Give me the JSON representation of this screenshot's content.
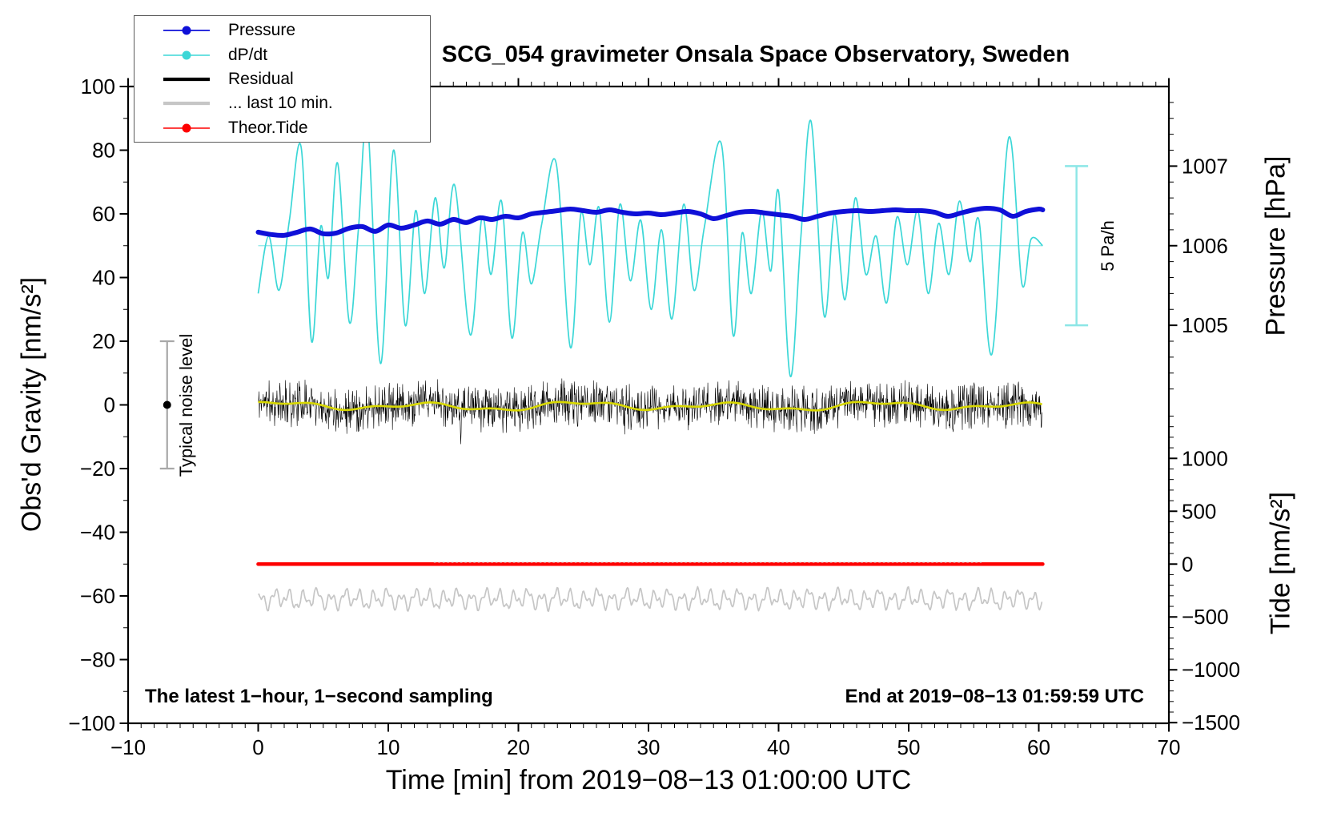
{
  "chart_data": {
    "type": "line",
    "title": "SCG_054 gravimeter Onsala Space Observatory, Sweden",
    "xlabel": "Time [min] from 2019−08−13 01:00:00 UTC",
    "ylabel_left": "Obs'd Gravity [nm/s²]",
    "ylabel_right_pressure": "Pressure [hPa]",
    "ylabel_right_tide": "Tide [nm/s²]",
    "annotation_bottom_left": "The latest 1−hour, 1−second sampling",
    "annotation_bottom_right": "End at 2019−08−13 01:59:59 UTC",
    "legend_position": "top-left",
    "grid": false,
    "legend": {
      "items": [
        {
          "label": "Pressure",
          "color": "#0f10d8",
          "line_width": 1.8,
          "dot": true
        },
        {
          "label": "dP/dt",
          "color": "#3cd7d7",
          "line_width": 1.6,
          "dot": true
        },
        {
          "label": "Residual",
          "color": "#000000",
          "line_width": 4.2,
          "dot": false
        },
        {
          "label": "... last 10 min.",
          "color": "#c6c6c6",
          "line_width": 4.2,
          "dot": false
        },
        {
          "label": "Theor.Tide",
          "color": "#fe0000",
          "line_width": 1.6,
          "dot": true
        }
      ]
    },
    "axes": {
      "x": {
        "min": -10,
        "max": 70,
        "major": 10,
        "minor": 1,
        "ticks": [
          -10,
          0,
          10,
          20,
          30,
          40,
          50,
          60,
          70
        ]
      },
      "y_left": {
        "min": -100,
        "max": 100,
        "major": 20,
        "minor": 10,
        "ticks": [
          100,
          80,
          60,
          40,
          20,
          0,
          -20,
          -40,
          -60,
          -80,
          -100
        ]
      },
      "y_right_pressure": {
        "ticks": [
          1007,
          1006,
          1005
        ],
        "minor_step": 0.2,
        "ref_value": 1006,
        "ref_gravity": 50,
        "gravity_per_unit": 25
      },
      "y_right_tide": {
        "ticks": [
          1000,
          500,
          0,
          -500,
          -1000,
          -1500
        ],
        "minor_step": 100,
        "zero_gravity": -50,
        "gravity_per_unit": 0.0332
      }
    },
    "dpdt_scale": {
      "zero_gravity": 50,
      "gravity_per_unit": 10
    },
    "noise_bar": {
      "label": "Typical noise level",
      "x_min": -7,
      "from_gravity": -20,
      "to_gravity": 20,
      "dot_gravity": 0
    },
    "scale_bar": {
      "label": "5 Pa/h",
      "x_min": 62.9,
      "from_gravity": 25,
      "to_gravity": 75
    },
    "series": [
      {
        "name": "pressure",
        "axis": "pressure",
        "unit": "hPa",
        "color": "#0f10d8",
        "width": 6,
        "points": [
          [
            0,
            1006.17
          ],
          [
            1,
            1006.14
          ],
          [
            2,
            1006.13
          ],
          [
            3,
            1006.17
          ],
          [
            4,
            1006.21
          ],
          [
            5,
            1006.15
          ],
          [
            6,
            1006.16
          ],
          [
            7,
            1006.22
          ],
          [
            8,
            1006.24
          ],
          [
            9,
            1006.18
          ],
          [
            10,
            1006.26
          ],
          [
            11,
            1006.22
          ],
          [
            12,
            1006.26
          ],
          [
            13,
            1006.31
          ],
          [
            14,
            1006.27
          ],
          [
            15,
            1006.33
          ],
          [
            16,
            1006.29
          ],
          [
            17,
            1006.35
          ],
          [
            18,
            1006.33
          ],
          [
            19,
            1006.37
          ],
          [
            20,
            1006.35
          ],
          [
            21,
            1006.4
          ],
          [
            22,
            1006.42
          ],
          [
            23,
            1006.44
          ],
          [
            24,
            1006.46
          ],
          [
            25,
            1006.44
          ],
          [
            26,
            1006.42
          ],
          [
            27,
            1006.45
          ],
          [
            28,
            1006.42
          ],
          [
            29,
            1006.4
          ],
          [
            30,
            1006.41
          ],
          [
            31,
            1006.39
          ],
          [
            32,
            1006.41
          ],
          [
            33,
            1006.43
          ],
          [
            34,
            1006.4
          ],
          [
            35,
            1006.34
          ],
          [
            36,
            1006.38
          ],
          [
            37,
            1006.42
          ],
          [
            38,
            1006.43
          ],
          [
            39,
            1006.41
          ],
          [
            40,
            1006.39
          ],
          [
            41,
            1006.37
          ],
          [
            42,
            1006.33
          ],
          [
            43,
            1006.37
          ],
          [
            44,
            1006.41
          ],
          [
            45,
            1006.43
          ],
          [
            46,
            1006.44
          ],
          [
            47,
            1006.43
          ],
          [
            48,
            1006.44
          ],
          [
            49,
            1006.45
          ],
          [
            50,
            1006.44
          ],
          [
            51,
            1006.44
          ],
          [
            52,
            1006.42
          ],
          [
            53,
            1006.37
          ],
          [
            54,
            1006.41
          ],
          [
            55,
            1006.45
          ],
          [
            56,
            1006.47
          ],
          [
            57,
            1006.45
          ],
          [
            58,
            1006.37
          ],
          [
            59,
            1006.43
          ],
          [
            60,
            1006.46
          ],
          [
            60.3,
            1006.45
          ]
        ]
      },
      {
        "name": "dpdt",
        "axis": "dpdt",
        "unit": "Pa/h",
        "color": "#3cd7d7",
        "width": 1.7,
        "zero_line_color": "#8ce6e6",
        "points": [
          [
            0,
            -1.5
          ],
          [
            0.8,
            0.3
          ],
          [
            1.6,
            -1.4
          ],
          [
            2.4,
            0.8
          ],
          [
            3.3,
            3.1
          ],
          [
            4.1,
            -3.0
          ],
          [
            4.8,
            0.6
          ],
          [
            5.4,
            -1.0
          ],
          [
            6.1,
            2.6
          ],
          [
            7.0,
            -2.4
          ],
          [
            7.7,
            0.5
          ],
          [
            8.4,
            3.9
          ],
          [
            9.4,
            -3.7
          ],
          [
            10.4,
            3.0
          ],
          [
            11.3,
            -2.5
          ],
          [
            12.1,
            1.1
          ],
          [
            12.8,
            -1.5
          ],
          [
            13.6,
            1.5
          ],
          [
            14.3,
            -0.7
          ],
          [
            15.1,
            1.9
          ],
          [
            16.3,
            -2.8
          ],
          [
            17.2,
            0.9
          ],
          [
            17.9,
            -0.9
          ],
          [
            18.7,
            1.4
          ],
          [
            19.5,
            -2.9
          ],
          [
            20.3,
            0.4
          ],
          [
            21.0,
            -1.2
          ],
          [
            21.8,
            0.7
          ],
          [
            22.9,
            2.6
          ],
          [
            24.0,
            -3.2
          ],
          [
            24.8,
            1.0
          ],
          [
            25.5,
            -0.6
          ],
          [
            26.2,
            1.2
          ],
          [
            27.0,
            -2.4
          ],
          [
            27.8,
            1.3
          ],
          [
            28.6,
            -1.1
          ],
          [
            29.4,
            0.8
          ],
          [
            30.2,
            -2.0
          ],
          [
            31.0,
            0.5
          ],
          [
            31.8,
            -2.3
          ],
          [
            32.7,
            1.3
          ],
          [
            33.5,
            -1.4
          ],
          [
            34.3,
            0.6
          ],
          [
            35.6,
            3.2
          ],
          [
            36.5,
            -2.8
          ],
          [
            37.2,
            0.4
          ],
          [
            37.9,
            -1.5
          ],
          [
            38.7,
            1.1
          ],
          [
            39.4,
            -0.8
          ],
          [
            40.0,
            1.7
          ],
          [
            40.9,
            -4.1
          ],
          [
            41.7,
            0.2
          ],
          [
            42.5,
            3.9
          ],
          [
            43.5,
            -2.2
          ],
          [
            44.3,
            1.0
          ],
          [
            45.1,
            -1.7
          ],
          [
            45.9,
            1.5
          ],
          [
            46.7,
            -0.9
          ],
          [
            47.5,
            0.3
          ],
          [
            48.3,
            -1.8
          ],
          [
            49.1,
            0.9
          ],
          [
            49.9,
            -0.6
          ],
          [
            50.7,
            1.1
          ],
          [
            51.5,
            -1.5
          ],
          [
            52.3,
            0.7
          ],
          [
            53.1,
            -0.9
          ],
          [
            53.9,
            1.4
          ],
          [
            54.7,
            -0.5
          ],
          [
            55.4,
            0.8
          ],
          [
            56.4,
            -3.4
          ],
          [
            57.7,
            3.4
          ],
          [
            58.7,
            -1.2
          ],
          [
            59.4,
            0.2
          ],
          [
            60.3,
            0.0
          ]
        ]
      },
      {
        "name": "residual",
        "axis": "gravity",
        "unit": "nm/s²",
        "color": "#000000",
        "width": 0.6,
        "x_start": 0,
        "x_end": 60.3,
        "step": 0.03,
        "seed": 11,
        "noise_amp": 5.5,
        "spike_amp": 3.5,
        "mean_components": {
          "base": -0.4,
          "waves": [
            [
              1.0,
              11.5,
              0.8
            ],
            [
              0.5,
              4.6,
              2.1
            ],
            [
              0.35,
              23,
              0.5
            ]
          ]
        }
      },
      {
        "name": "residual_smooth_10min",
        "axis": "gravity",
        "unit": "nm/s²",
        "color": "#d8d800",
        "width": 2.6,
        "x_start": 0,
        "x_end": 60.3,
        "step": 0.25,
        "mean_components": {
          "base": -0.4,
          "waves": [
            [
              1.0,
              11.5,
              0.8
            ],
            [
              0.5,
              4.6,
              2.1
            ],
            [
              0.35,
              23,
              0.5
            ]
          ]
        }
      },
      {
        "name": "theor_tide",
        "axis": "tide",
        "unit": "nm/s²",
        "color": "#fe0000",
        "width": 4.6,
        "points": [
          [
            0,
            0
          ],
          [
            60.3,
            0
          ]
        ]
      },
      {
        "name": "theor_tide_last10_dashed",
        "axis": "tide",
        "unit": "nm/s²",
        "color": "#d9d9d9",
        "width": 1.3,
        "dash": "2.5 3",
        "points": [
          [
            13.5,
            18
          ],
          [
            55.6,
            18
          ]
        ]
      },
      {
        "name": "last_10_min",
        "axis": "gravity",
        "unit": "nm/s²",
        "color": "#c6c6c6",
        "width": 1.7,
        "x_start": 0,
        "x_end": 60.3,
        "step": 0.06,
        "seed": 5,
        "jitter": 0.5,
        "mean_components": {
          "base": -61.0,
          "waves": [
            [
              2.1,
              1.08,
              0.3
            ],
            [
              1.25,
              0.49,
              1.7
            ],
            [
              0.75,
              2.7,
              4.0
            ]
          ]
        }
      }
    ],
    "colors": {
      "frame": "#000000",
      "tick": "#000000",
      "noise_bar": "#a8a8a8",
      "noise_bar_dot": "#000000",
      "scale_bar": "#8ce6e6"
    }
  }
}
